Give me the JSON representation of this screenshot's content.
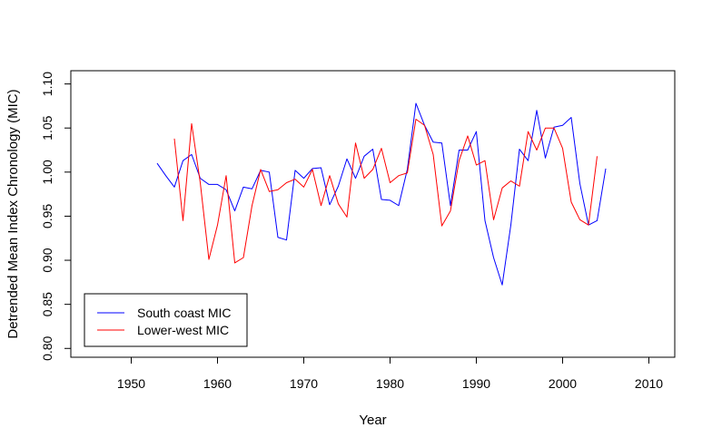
{
  "chart_data": {
    "type": "line",
    "title": "",
    "xlabel": "Year",
    "ylabel": "Detrended Mean Index Chronology (MIC)",
    "xlim": [
      1943,
      2013
    ],
    "ylim": [
      0.79,
      1.115
    ],
    "xticks": [
      1950,
      1960,
      1970,
      1980,
      1990,
      2000,
      2010
    ],
    "yticks": [
      "0.80",
      "0.85",
      "0.90",
      "0.95",
      "1.00",
      "1.05",
      "1.10"
    ],
    "grid": false,
    "legend_position": "bottom-left",
    "series": [
      {
        "name": "South coast MIC",
        "color": "#0000ff",
        "x": [
          1953,
          1954,
          1955,
          1956,
          1957,
          1958,
          1959,
          1960,
          1961,
          1962,
          1963,
          1964,
          1965,
          1966,
          1967,
          1968,
          1969,
          1970,
          1971,
          1972,
          1973,
          1974,
          1975,
          1976,
          1977,
          1978,
          1979,
          1980,
          1981,
          1982,
          1983,
          1984,
          1985,
          1986,
          1987,
          1988,
          1989,
          1990,
          1991,
          1992,
          1993,
          1994,
          1995,
          1996,
          1997,
          1998,
          1999,
          2000,
          2001,
          2002,
          2003,
          2004,
          2005
        ],
        "y": [
          1.01,
          0.996,
          0.983,
          1.013,
          1.02,
          0.993,
          0.986,
          0.986,
          0.98,
          0.956,
          0.983,
          0.981,
          1.002,
          1.0,
          0.926,
          0.923,
          1.002,
          0.993,
          1.004,
          1.005,
          0.963,
          0.984,
          1.015,
          0.993,
          1.018,
          1.026,
          0.969,
          0.968,
          0.962,
          1.003,
          1.078,
          1.053,
          1.034,
          1.033,
          0.962,
          1.025,
          1.025,
          1.046,
          0.945,
          0.903,
          0.872,
          0.94,
          1.026,
          1.013,
          1.07,
          1.016,
          1.051,
          1.053,
          1.062,
          0.987,
          0.94,
          0.945,
          1.004
        ]
      },
      {
        "name": "Lower-west MIC",
        "color": "#ff0000",
        "x": [
          1955,
          1956,
          1957,
          1958,
          1959,
          1960,
          1961,
          1962,
          1963,
          1964,
          1965,
          1966,
          1967,
          1968,
          1969,
          1970,
          1971,
          1972,
          1973,
          1974,
          1975,
          1976,
          1977,
          1978,
          1979,
          1980,
          1981,
          1982,
          1983,
          1984,
          1985,
          1986,
          1987,
          1988,
          1989,
          1990,
          1991,
          1992,
          1993,
          1994,
          1995,
          1996,
          1997,
          1998,
          1999,
          2000,
          2001,
          2002,
          2003,
          2004
        ],
        "y": [
          1.038,
          0.945,
          1.055,
          0.988,
          0.901,
          0.94,
          0.996,
          0.897,
          0.903,
          0.962,
          1.003,
          0.978,
          0.98,
          0.988,
          0.992,
          0.983,
          1.003,
          0.962,
          0.996,
          0.964,
          0.949,
          1.033,
          0.993,
          1.003,
          1.027,
          0.988,
          0.996,
          0.999,
          1.06,
          1.053,
          1.02,
          0.939,
          0.956,
          1.013,
          1.041,
          1.008,
          1.013,
          0.946,
          0.982,
          0.99,
          0.984,
          1.046,
          1.025,
          1.05,
          1.05,
          1.027,
          0.966,
          0.946,
          0.94,
          1.018
        ]
      }
    ]
  }
}
